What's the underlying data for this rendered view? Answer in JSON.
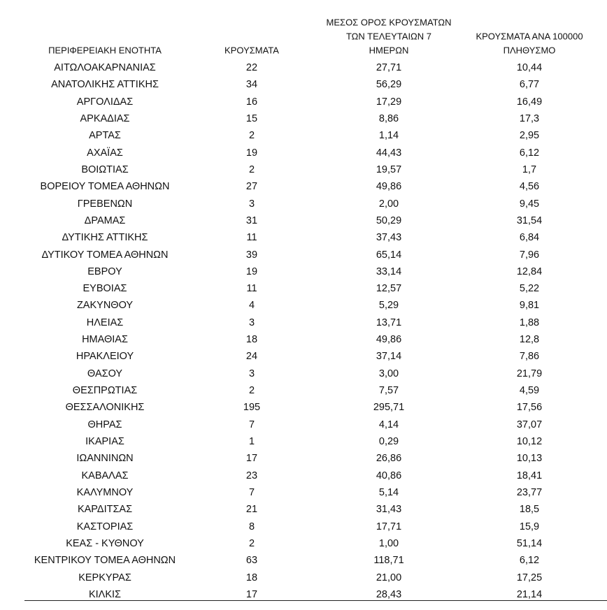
{
  "table": {
    "headers": [
      {
        "lines": [
          "ΠΕΡΙΦΕΡΕΙΑΚΗ ΕΝΟΤΗΤΑ"
        ]
      },
      {
        "lines": [
          "ΚΡΟΥΣΜΑΤΑ"
        ]
      },
      {
        "lines": [
          "ΜΕΣΟΣ ΟΡΟΣ ΚΡΟΥΣΜΑΤΩΝ",
          "ΤΩΝ ΤΕΛΕΥΤΑΙΩΝ 7",
          "ΗΜΕΡΩΝ"
        ]
      },
      {
        "lines": [
          "ΚΡΟΥΣΜΑΤΑ ΑΝΑ 100000",
          "ΠΛΗΘΥΣΜΟ"
        ]
      }
    ],
    "rows": [
      [
        "ΑΙΤΩΛΟΑΚΑΡΝΑΝΙΑΣ",
        "22",
        "27,71",
        "10,44"
      ],
      [
        "ΑΝΑΤΟΛΙΚΗΣ ΑΤΤΙΚΗΣ",
        "34",
        "56,29",
        "6,77"
      ],
      [
        "ΑΡΓΟΛΙΔΑΣ",
        "16",
        "17,29",
        "16,49"
      ],
      [
        "ΑΡΚΑΔΙΑΣ",
        "15",
        "8,86",
        "17,3"
      ],
      [
        "ΑΡΤΑΣ",
        "2",
        "1,14",
        "2,95"
      ],
      [
        "ΑΧΑΪΑΣ",
        "19",
        "44,43",
        "6,12"
      ],
      [
        "ΒΟΙΩΤΙΑΣ",
        "2",
        "19,57",
        "1,7"
      ],
      [
        "ΒΟΡΕΙΟΥ ΤΟΜΕΑ ΑΘΗΝΩΝ",
        "27",
        "49,86",
        "4,56"
      ],
      [
        "ΓΡΕΒΕΝΩΝ",
        "3",
        "2,00",
        "9,45"
      ],
      [
        "ΔΡΑΜΑΣ",
        "31",
        "50,29",
        "31,54"
      ],
      [
        "ΔΥΤΙΚΗΣ ΑΤΤΙΚΗΣ",
        "11",
        "37,43",
        "6,84"
      ],
      [
        "ΔΥΤΙΚΟΥ ΤΟΜΕΑ ΑΘΗΝΩΝ",
        "39",
        "65,14",
        "7,96"
      ],
      [
        "ΕΒΡΟΥ",
        "19",
        "33,14",
        "12,84"
      ],
      [
        "ΕΥΒΟΙΑΣ",
        "11",
        "12,57",
        "5,22"
      ],
      [
        "ΖΑΚΥΝΘΟΥ",
        "4",
        "5,29",
        "9,81"
      ],
      [
        "ΗΛΕΙΑΣ",
        "3",
        "13,71",
        "1,88"
      ],
      [
        "ΗΜΑΘΙΑΣ",
        "18",
        "49,86",
        "12,8"
      ],
      [
        "ΗΡΑΚΛΕΙΟΥ",
        "24",
        "37,14",
        "7,86"
      ],
      [
        "ΘΑΣΟΥ",
        "3",
        "3,00",
        "21,79"
      ],
      [
        "ΘΕΣΠΡΩΤΙΑΣ",
        "2",
        "7,57",
        "4,59"
      ],
      [
        "ΘΕΣΣΑΛΟΝΙΚΗΣ",
        "195",
        "295,71",
        "17,56"
      ],
      [
        "ΘΗΡΑΣ",
        "7",
        "4,14",
        "37,07"
      ],
      [
        "ΙΚΑΡΙΑΣ",
        "1",
        "0,29",
        "10,12"
      ],
      [
        "ΙΩΑΝΝΙΝΩΝ",
        "17",
        "26,86",
        "10,13"
      ],
      [
        "ΚΑΒΑΛΑΣ",
        "23",
        "40,86",
        "18,41"
      ],
      [
        "ΚΑΛΥΜΝΟΥ",
        "7",
        "5,14",
        "23,77"
      ],
      [
        "ΚΑΡΔΙΤΣΑΣ",
        "21",
        "31,43",
        "18,5"
      ],
      [
        "ΚΑΣΤΟΡΙΑΣ",
        "8",
        "17,71",
        "15,9"
      ],
      [
        "ΚΕΑΣ - ΚΥΘΝΟΥ",
        "2",
        "1,00",
        "51,14"
      ],
      [
        "ΚΕΝΤΡΙΚΟΥ ΤΟΜΕΑ ΑΘΗΝΩΝ",
        "63",
        "118,71",
        "6,12"
      ],
      [
        "ΚΕΡΚΥΡΑΣ",
        "18",
        "21,00",
        "17,25"
      ],
      [
        "ΚΙΛΚΙΣ",
        "17",
        "28,43",
        "21,14"
      ]
    ]
  }
}
